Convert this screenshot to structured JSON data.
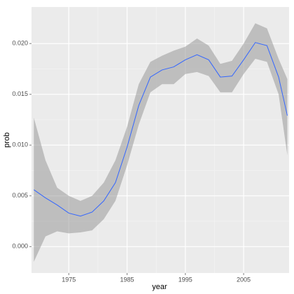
{
  "chart_data": {
    "type": "line",
    "x_label": "year",
    "y_label": "prob",
    "x": [
      1969,
      1971,
      1973,
      1975,
      1977,
      1979,
      1981,
      1983,
      1985,
      1987,
      1989,
      1991,
      1993,
      1995,
      1997,
      1999,
      2001,
      2003,
      2005,
      2007,
      2009,
      2011,
      2012.5
    ],
    "values": [
      0.0056,
      0.0048,
      0.0041,
      0.0033,
      0.003,
      0.0034,
      0.0045,
      0.0063,
      0.0098,
      0.0139,
      0.0167,
      0.0174,
      0.0177,
      0.0184,
      0.0189,
      0.0184,
      0.0167,
      0.0168,
      0.0184,
      0.0201,
      0.0198,
      0.0167,
      0.0129
    ],
    "upper": [
      0.0127,
      0.0085,
      0.0058,
      0.005,
      0.0045,
      0.005,
      0.0063,
      0.0085,
      0.0118,
      0.016,
      0.0182,
      0.0188,
      0.0193,
      0.0197,
      0.0205,
      0.0198,
      0.018,
      0.0183,
      0.02,
      0.022,
      0.0215,
      0.0185,
      0.0165
    ],
    "lower": [
      -0.0015,
      0.001,
      0.0015,
      0.0013,
      0.0014,
      0.0016,
      0.0027,
      0.0045,
      0.008,
      0.012,
      0.0152,
      0.016,
      0.016,
      0.017,
      0.0172,
      0.0168,
      0.0152,
      0.0152,
      0.017,
      0.0185,
      0.0182,
      0.015,
      0.009
    ],
    "color": "#3366ff",
    "band_color": "#999999",
    "xlim": [
      1968.6,
      2012.8
    ],
    "xticks": [
      1975,
      1985,
      1995,
      2005
    ],
    "ylim": [
      -0.0026,
      0.0236
    ],
    "yticks": [
      {
        "value": 0,
        "label": "0.000"
      },
      {
        "value": 0.005,
        "label": "0.005"
      },
      {
        "value": 0.01,
        "label": "0.010"
      },
      {
        "value": 0.015,
        "label": "0.015"
      },
      {
        "value": 0.02,
        "label": "0.020"
      }
    ],
    "grid": true
  }
}
